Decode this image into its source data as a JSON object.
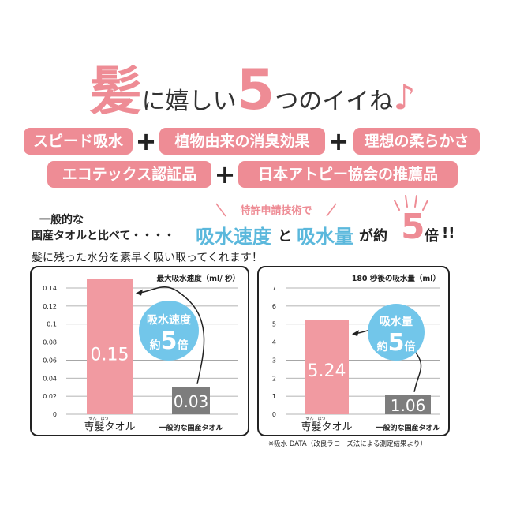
{
  "headline": {
    "kanji": "髪",
    "part1": "に嬉しい",
    "number": "5",
    "part2": "つのイイね",
    "note": "♪"
  },
  "tags": {
    "row1": [
      "スピード吸水",
      "植物由来の消臭効果",
      "理想の柔らかさ"
    ],
    "row2": [
      "エコテックス認証品",
      "日本アトピー協会の推薦品"
    ],
    "plus": "+"
  },
  "comparison": {
    "line1": "一般的な",
    "line2": "国産タオルと比べて・・・・",
    "tech_label": "特許申請技術で",
    "speed": "吸水速度",
    "and": "と",
    "amount": "吸水量",
    "ga_yaku": "が約",
    "five": "5",
    "times": "倍",
    "bang": "!!"
  },
  "subtitle": "髪に残った水分を素早く吸い取ってくれます！",
  "colors": {
    "accent_pink": "#ee8c95",
    "bar_pink": "#f19aa1",
    "bar_gray": "#7d7d7d",
    "bubble_blue": "#72c6ea",
    "text_blue": "#5bb8dc"
  },
  "chart_data": [
    {
      "type": "bar",
      "title": "最大吸水速度（ml/ 秒）",
      "categories": [
        "専髪タオル",
        "一般的な国産タオル"
      ],
      "category_ruby": [
        "せん　はつ",
        ""
      ],
      "values": [
        0.15,
        0.03
      ],
      "value_labels": [
        "0.15",
        "0.03"
      ],
      "ylim": [
        0,
        0.14
      ],
      "yticks": [
        "0",
        "0.02",
        "0.04",
        "0.06",
        "0.08",
        "0.1",
        "0.12",
        "0.14"
      ],
      "grid": true,
      "bubble": {
        "line1": "吸水速度",
        "prefix": "約",
        "number": "5",
        "suffix": "倍"
      }
    },
    {
      "type": "bar",
      "title": "180 秒後の吸水量（ml）",
      "categories": [
        "専髪タオル",
        "一般的な国産タオル"
      ],
      "category_ruby": [
        "せん　はつ",
        ""
      ],
      "values": [
        5.24,
        1.06
      ],
      "value_labels": [
        "5.24",
        "1.06"
      ],
      "ylim": [
        0,
        7
      ],
      "yticks": [
        "0",
        "1",
        "2",
        "3",
        "4",
        "5",
        "6",
        "7"
      ],
      "grid": true,
      "bubble": {
        "line1": "吸水量",
        "prefix": "約",
        "number": "5",
        "suffix": "倍"
      }
    }
  ],
  "footnote": "※吸水 DATA（改良ラローズ法による測定結果より）"
}
